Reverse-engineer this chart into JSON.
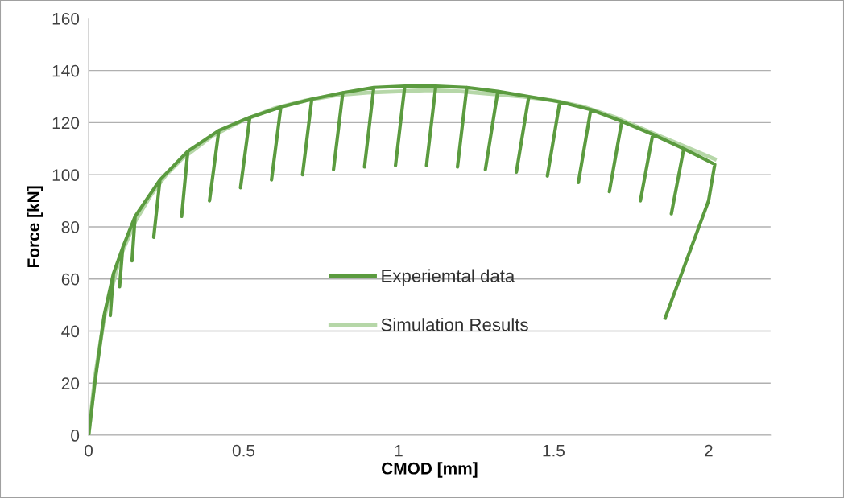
{
  "chart_data": {
    "type": "line",
    "xlabel": "CMOD [mm]",
    "ylabel": "Force [kN]",
    "xlim": [
      0,
      2.2
    ],
    "xticks": [
      0,
      0.5,
      1,
      1.5,
      2
    ],
    "ylim": [
      0,
      160
    ],
    "yticks": [
      0,
      20,
      40,
      60,
      80,
      100,
      120,
      140,
      160
    ],
    "grid": "y",
    "legend": "center",
    "marker": "none",
    "line_style": "solid",
    "series": [
      {
        "name": "Experiemtal data",
        "color": "#5b9b3f",
        "x": [
          0,
          0.02,
          0.05,
          0.08,
          0.07,
          0.08,
          0.11,
          0.1,
          0.11,
          0.15,
          0.14,
          0.15,
          0.23,
          0.21,
          0.23,
          0.32,
          0.3,
          0.32,
          0.42,
          0.39,
          0.42,
          0.52,
          0.49,
          0.52,
          0.62,
          0.59,
          0.62,
          0.72,
          0.69,
          0.72,
          0.82,
          0.79,
          0.82,
          0.92,
          0.89,
          0.92,
          1.02,
          0.99,
          1.02,
          1.12,
          1.09,
          1.12,
          1.22,
          1.19,
          1.22,
          1.32,
          1.28,
          1.32,
          1.42,
          1.38,
          1.42,
          1.52,
          1.48,
          1.52,
          1.62,
          1.58,
          1.62,
          1.72,
          1.68,
          1.72,
          1.82,
          1.78,
          1.82,
          1.92,
          1.88,
          1.92,
          2.02,
          2.0,
          1.86
        ],
        "values": [
          0,
          20,
          46,
          62,
          46,
          62,
          72,
          57,
          72,
          84,
          67,
          84,
          98,
          76,
          98,
          109,
          84,
          109,
          117,
          90,
          117,
          122,
          95,
          122,
          126,
          98,
          126,
          129,
          100,
          129,
          131.5,
          102,
          131.5,
          133.5,
          103,
          133.5,
          134,
          103.5,
          134,
          134,
          103.5,
          134,
          133.5,
          103,
          133.5,
          132,
          102,
          132,
          130,
          101,
          130,
          128,
          99.5,
          128,
          125,
          97,
          125,
          120.5,
          93.5,
          120.5,
          115.5,
          90,
          115.5,
          110,
          85,
          110,
          104,
          90,
          45
        ]
      },
      {
        "name": "Simulation Results",
        "color": "#b6d7a8",
        "x": [
          0,
          0.02,
          0.05,
          0.1,
          0.15,
          0.2,
          0.25,
          0.3,
          0.4,
          0.5,
          0.6,
          0.7,
          0.8,
          0.9,
          1.0,
          1.1,
          1.2,
          1.3,
          1.4,
          1.5,
          1.6,
          1.7,
          1.8,
          1.9,
          2.02
        ],
        "values": [
          0,
          22,
          45,
          68,
          82,
          92,
          100,
          106,
          115,
          121,
          125.5,
          128.5,
          130.5,
          131.5,
          132,
          132.5,
          132,
          131,
          130,
          128.5,
          126,
          122,
          117,
          112,
          106
        ]
      }
    ]
  }
}
